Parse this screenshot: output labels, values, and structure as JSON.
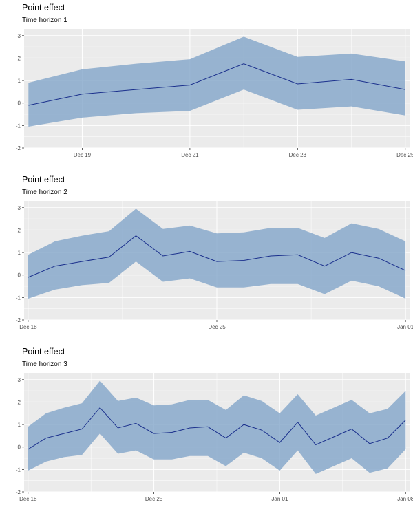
{
  "colors": {
    "band": "#7fa3c8",
    "line": "#1a2f8c",
    "panel": "#ebebeb",
    "grid": "#ffffff"
  },
  "chart_data": [
    {
      "type": "line",
      "title": "Point effect",
      "subtitle": "Time horizon 1",
      "ylim": [
        -2,
        3.3
      ],
      "yticks": [
        -2,
        -1,
        0,
        1,
        2,
        3
      ],
      "x": [
        0,
        1,
        2,
        3,
        4,
        5,
        6,
        7
      ],
      "xlim": [
        -0.08,
        7.08
      ],
      "xticks": [
        {
          "x": 1,
          "label": "Dec 19"
        },
        {
          "x": 3,
          "label": "Dec 21"
        },
        {
          "x": 5,
          "label": "Dec 23"
        },
        {
          "x": 7,
          "label": "Dec 25"
        }
      ],
      "series": [
        {
          "name": "point effect",
          "values": [
            -0.1,
            0.4,
            0.6,
            0.8,
            1.75,
            0.85,
            1.05,
            0.6
          ]
        },
        {
          "name": "upper",
          "values": [
            0.9,
            1.5,
            1.75,
            1.95,
            2.95,
            2.05,
            2.2,
            1.85
          ]
        },
        {
          "name": "lower",
          "values": [
            -1.05,
            -0.65,
            -0.45,
            -0.35,
            0.6,
            -0.3,
            -0.15,
            -0.55
          ]
        }
      ]
    },
    {
      "type": "line",
      "title": "Point effect",
      "subtitle": "Time horizon 2",
      "ylim": [
        -2,
        3.3
      ],
      "yticks": [
        -2,
        -1,
        0,
        1,
        2,
        3
      ],
      "x": [
        0,
        1,
        2,
        3,
        4,
        5,
        6,
        7,
        8,
        9,
        10,
        11,
        12,
        13,
        14
      ],
      "xlim": [
        -0.15,
        14.15
      ],
      "xticks": [
        {
          "x": 0,
          "label": "Dec 18"
        },
        {
          "x": 7,
          "label": "Dec 25"
        },
        {
          "x": 14,
          "label": "Jan 01"
        }
      ],
      "series": [
        {
          "name": "point effect",
          "values": [
            -0.1,
            0.4,
            0.6,
            0.8,
            1.75,
            0.85,
            1.05,
            0.6,
            0.65,
            0.85,
            0.9,
            0.4,
            1.0,
            0.75,
            0.2
          ]
        },
        {
          "name": "upper",
          "values": [
            0.9,
            1.5,
            1.75,
            1.95,
            2.95,
            2.05,
            2.2,
            1.85,
            1.9,
            2.1,
            2.1,
            1.65,
            2.3,
            2.05,
            1.5
          ]
        },
        {
          "name": "lower",
          "values": [
            -1.05,
            -0.65,
            -0.45,
            -0.35,
            0.6,
            -0.3,
            -0.15,
            -0.55,
            -0.55,
            -0.4,
            -0.4,
            -0.85,
            -0.25,
            -0.5,
            -1.05
          ]
        }
      ]
    },
    {
      "type": "line",
      "title": "Point effect",
      "subtitle": "Time horizon 3",
      "ylim": [
        -2,
        3.3
      ],
      "yticks": [
        -2,
        -1,
        0,
        1,
        2,
        3
      ],
      "x": [
        0,
        1,
        2,
        3,
        4,
        5,
        6,
        7,
        8,
        9,
        10,
        11,
        12,
        13,
        14,
        15,
        16,
        17,
        18,
        19,
        20,
        21
      ],
      "xlim": [
        -0.22,
        21.22
      ],
      "xticks": [
        {
          "x": 0,
          "label": "Dec 18"
        },
        {
          "x": 7,
          "label": "Dec 25"
        },
        {
          "x": 14,
          "label": "Jan 01"
        },
        {
          "x": 21,
          "label": "Jan 08"
        }
      ],
      "series": [
        {
          "name": "point effect",
          "values": [
            -0.1,
            0.4,
            0.6,
            0.8,
            1.75,
            0.85,
            1.05,
            0.6,
            0.65,
            0.85,
            0.9,
            0.4,
            1.0,
            0.75,
            0.2,
            1.1,
            0.1,
            0.45,
            0.8,
            0.15,
            0.4,
            1.2
          ]
        },
        {
          "name": "upper",
          "values": [
            0.9,
            1.5,
            1.75,
            1.95,
            2.95,
            2.05,
            2.2,
            1.85,
            1.9,
            2.1,
            2.1,
            1.65,
            2.3,
            2.05,
            1.5,
            2.35,
            1.4,
            1.75,
            2.1,
            1.5,
            1.7,
            2.5
          ]
        },
        {
          "name": "lower",
          "values": [
            -1.05,
            -0.65,
            -0.45,
            -0.35,
            0.6,
            -0.3,
            -0.15,
            -0.55,
            -0.55,
            -0.4,
            -0.4,
            -0.85,
            -0.25,
            -0.5,
            -1.05,
            -0.15,
            -1.2,
            -0.85,
            -0.5,
            -1.15,
            -0.95,
            -0.1
          ]
        }
      ]
    }
  ]
}
